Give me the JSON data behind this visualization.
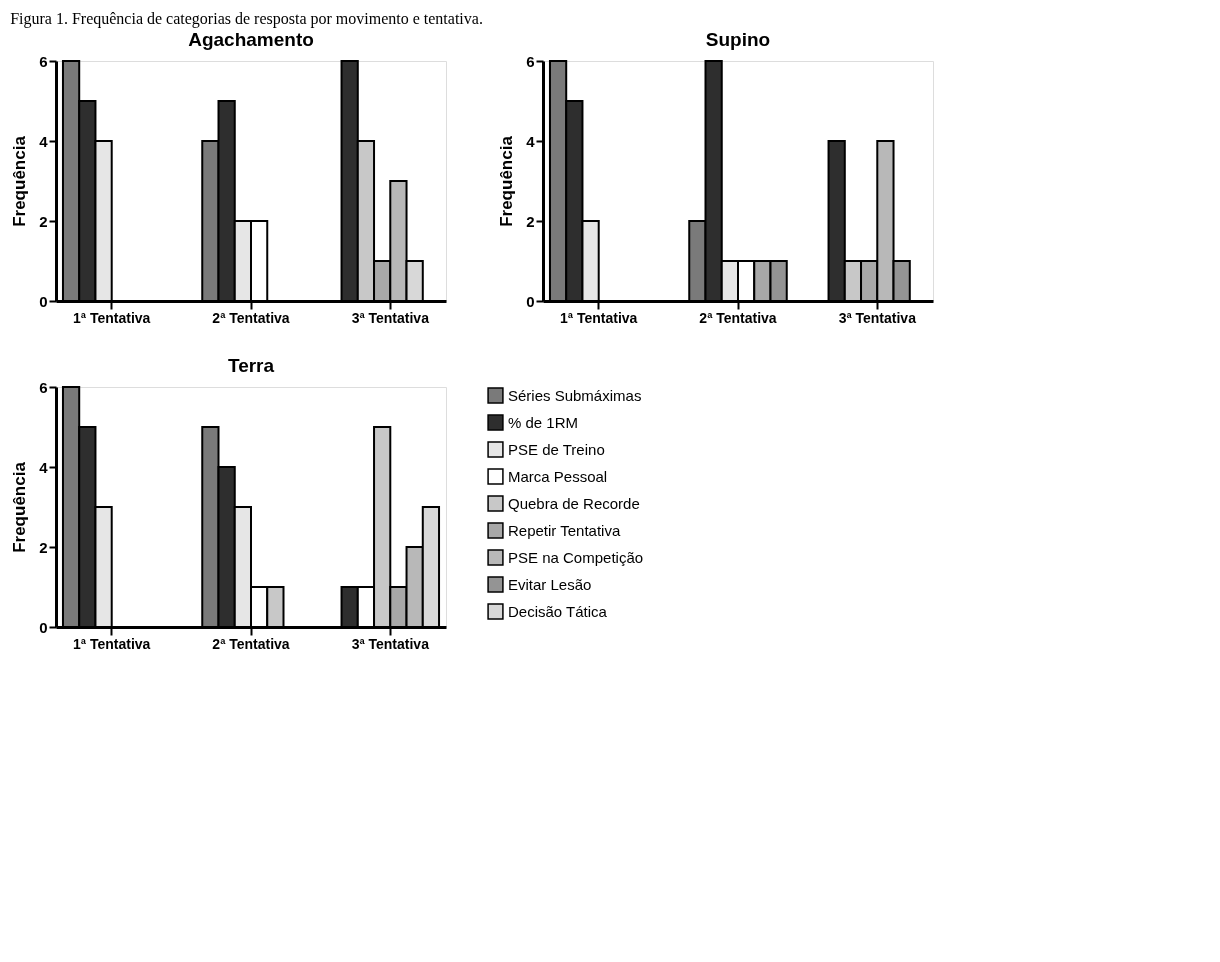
{
  "chart_data": [
    {
      "type": "bar",
      "title": "Agachamento",
      "ylabel": "Frequência",
      "annotations": [
        "Figura 1. Frequência de categorias de resposta por movimento e tentativa."
      ],
      "categories": [
        "1ª Tentativa",
        "2ª Tentativa",
        "3ª Tentativa"
      ],
      "ylim": [
        0,
        6
      ],
      "yticks": [
        0,
        2,
        4,
        6
      ],
      "grid": false,
      "legend": false,
      "series": [
        {
          "color": "#7a7a7a",
          "values": [
            6,
            4,
            null
          ]
        },
        {
          "color": "#2e2e2e",
          "values": [
            5,
            5,
            6
          ]
        },
        {
          "color": "#e6e6e6",
          "values": [
            4,
            2,
            null
          ]
        },
        {
          "color": "#ffffff",
          "values": [
            null,
            2,
            null
          ]
        },
        {
          "color": "#c8c8c8",
          "values": [
            null,
            null,
            4
          ]
        },
        {
          "color": "#a8a8a8",
          "values": [
            null,
            null,
            1
          ]
        },
        {
          "color": "#b8b8b8",
          "values": [
            null,
            null,
            3
          ]
        },
        {
          "color": "#949494",
          "values": [
            null,
            null,
            null
          ]
        },
        {
          "color": "#d8d8d8",
          "values": [
            null,
            null,
            1
          ]
        }
      ]
    },
    {
      "type": "bar",
      "title": "Supino",
      "ylabel": "Frequência",
      "categories": [
        "1ª Tentativa",
        "2ª Tentativa",
        "3ª Tentativa"
      ],
      "ylim": [
        0,
        6
      ],
      "yticks": [
        0,
        2,
        4,
        6
      ],
      "grid": false,
      "legend": false,
      "series": [
        {
          "color": "#7a7a7a",
          "values": [
            6,
            2,
            null
          ]
        },
        {
          "color": "#2e2e2e",
          "values": [
            5,
            6,
            4
          ]
        },
        {
          "color": "#e6e6e6",
          "values": [
            2,
            1,
            null
          ]
        },
        {
          "color": "#ffffff",
          "values": [
            null,
            1,
            null
          ]
        },
        {
          "color": "#c8c8c8",
          "values": [
            null,
            null,
            1
          ]
        },
        {
          "color": "#a8a8a8",
          "values": [
            null,
            1,
            1
          ]
        },
        {
          "color": "#b8b8b8",
          "values": [
            null,
            null,
            4
          ]
        },
        {
          "color": "#949494",
          "values": [
            null,
            1,
            1
          ]
        },
        {
          "color": "#d8d8d8",
          "values": [
            null,
            null,
            null
          ]
        }
      ]
    },
    {
      "type": "bar",
      "title": "Terra",
      "ylabel": "Frequência",
      "categories": [
        "1ª Tentativa",
        "2ª Tentativa",
        "3ª Tentativa"
      ],
      "ylim": [
        0,
        6
      ],
      "yticks": [
        0,
        2,
        4,
        6
      ],
      "grid": false,
      "legend": "right",
      "series": [
        {
          "name": "Séries Submáximas",
          "color": "#7a7a7a",
          "values": [
            6,
            5,
            null
          ]
        },
        {
          "name": "% de 1RM",
          "color": "#2e2e2e",
          "values": [
            5,
            4,
            1
          ]
        },
        {
          "name": "PSE de Treino",
          "color": "#e6e6e6",
          "values": [
            3,
            3,
            null
          ]
        },
        {
          "name": "Marca Pessoal",
          "color": "#ffffff",
          "values": [
            null,
            1,
            1
          ]
        },
        {
          "name": "Quebra de Recorde",
          "color": "#c8c8c8",
          "values": [
            null,
            1,
            5
          ]
        },
        {
          "name": "Repetir Tentativa",
          "color": "#a8a8a8",
          "values": [
            null,
            null,
            1
          ]
        },
        {
          "name": "PSE na Competição",
          "color": "#b8b8b8",
          "values": [
            null,
            null,
            2
          ]
        },
        {
          "name": "Evitar Lesão",
          "color": "#949494",
          "values": [
            null,
            null,
            null
          ]
        },
        {
          "name": "Decisão Tática",
          "color": "#d8d8d8",
          "values": [
            null,
            null,
            3
          ]
        }
      ]
    }
  ]
}
